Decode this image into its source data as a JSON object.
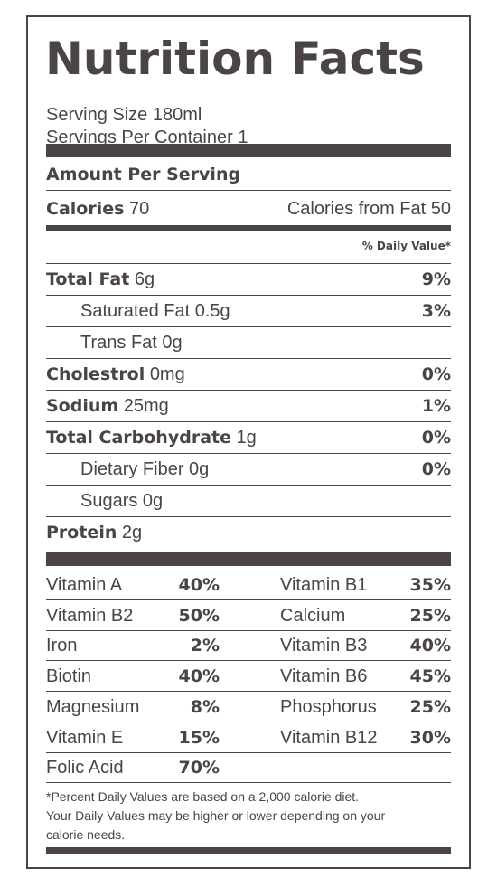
{
  "title": "Nutrition Facts",
  "serving_size": "Serving Size 180ml",
  "servings_per_container": "Servings Per Container 1",
  "amount_per_serving": "Amount Per Serving",
  "calories": {
    "label": "Calories",
    "value": "70",
    "from_fat": "Calories from Fat 50"
  },
  "daily_value_header": "% Daily Value*",
  "nutrients": [
    {
      "label": "Total Fat",
      "amount": "6g",
      "dv": "9%"
    },
    {
      "label": "Saturated Fat 0.5g",
      "amount": "",
      "dv": "3%"
    },
    {
      "label": "Trans Fat 0g",
      "amount": "",
      "dv": ""
    },
    {
      "label": "Cholestrol",
      "amount": "0mg",
      "dv": "0%"
    },
    {
      "label": "Sodium",
      "amount": "25mg",
      "dv": "1%"
    },
    {
      "label": "Total Carbohydrate",
      "amount": "1g",
      "dv": "0%"
    },
    {
      "label": "Dietary Fiber 0g",
      "amount": "",
      "dv": "0%"
    },
    {
      "label": "Sugars 0g",
      "amount": "",
      "dv": ""
    },
    {
      "label": "Protein",
      "amount": "2g",
      "dv": ""
    }
  ],
  "vitamins": [
    {
      "left_name": "Vitamin A",
      "left_pct": "40%",
      "right_name": "Vitamin B1",
      "right_pct": "35%"
    },
    {
      "left_name": "Vitamin B2",
      "left_pct": "50%",
      "right_name": "Calcium",
      "right_pct": "25%"
    },
    {
      "left_name": "Iron",
      "left_pct": "2%",
      "right_name": "Vitamin B3",
      "right_pct": "40%"
    },
    {
      "left_name": "Biotin",
      "left_pct": "40%",
      "right_name": "Vitamin B6",
      "right_pct": "45%"
    },
    {
      "left_name": "Magnesium",
      "left_pct": "8%",
      "right_name": "Phosphorus",
      "right_pct": "25%"
    },
    {
      "left_name": "Vitamin E",
      "left_pct": "15%",
      "right_name": "Vitamin B12",
      "right_pct": "30%"
    },
    {
      "left_name": "Folic Acid",
      "left_pct": "70%",
      "right_name": "",
      "right_pct": ""
    }
  ],
  "footnote": {
    "line1": "*Percent Daily Values are based on a 2,000 calorie diet.",
    "line2": "Your Daily Values may be higher or lower depending on your",
    "line3": "calorie needs."
  },
  "colors": {
    "ink": "#4a4444",
    "background": "#ffffff"
  }
}
